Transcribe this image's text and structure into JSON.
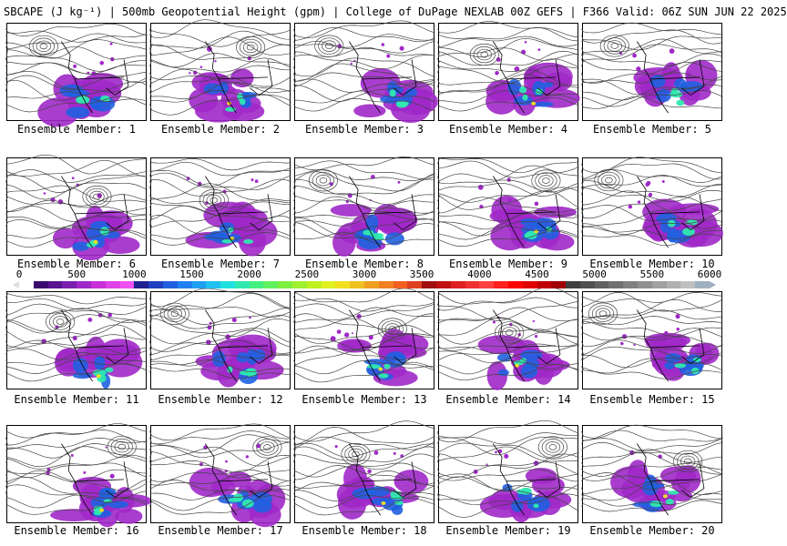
{
  "header": {
    "title": "SBCAPE (J kg⁻¹) | 500mb Geopotential Height (gpm) | College of DuPage NEXLAB 00Z GEFS | F366 Valid: 06Z SUN JUN 22 2025"
  },
  "members": [
    {
      "label": "Ensemble Member: 1"
    },
    {
      "label": "Ensemble Member: 2"
    },
    {
      "label": "Ensemble Member: 3"
    },
    {
      "label": "Ensemble Member: 4"
    },
    {
      "label": "Ensemble Member: 5"
    },
    {
      "label": "Ensemble Member: 6"
    },
    {
      "label": "Ensemble Member: 7"
    },
    {
      "label": "Ensemble Member: 8"
    },
    {
      "label": "Ensemble Member: 9"
    },
    {
      "label": "Ensemble Member: 10"
    },
    {
      "label": "Ensemble Member: 11"
    },
    {
      "label": "Ensemble Member: 12"
    },
    {
      "label": "Ensemble Member: 13"
    },
    {
      "label": "Ensemble Member: 14"
    },
    {
      "label": "Ensemble Member: 15"
    },
    {
      "label": "Ensemble Member: 16"
    },
    {
      "label": "Ensemble Member: 17"
    },
    {
      "label": "Ensemble Member: 18"
    },
    {
      "label": "Ensemble Member: 19"
    },
    {
      "label": "Ensemble Member: 20"
    }
  ],
  "colorbar": {
    "ticks": [
      "0",
      "500",
      "1000",
      "1500",
      "2000",
      "2500",
      "3000",
      "3500",
      "4000",
      "4500",
      "5000",
      "5500",
      "6000"
    ],
    "min": 0,
    "max": 6000,
    "colors": [
      "#ffffff",
      "#3a0a6e",
      "#5a1490",
      "#7a1eb0",
      "#a028c8",
      "#c830d8",
      "#e040e8",
      "#f050f0",
      "#202090",
      "#2040c0",
      "#2060e0",
      "#2080f0",
      "#20a0f0",
      "#20c0f0",
      "#20e0e0",
      "#30e8b0",
      "#40f080",
      "#60f060",
      "#80f040",
      "#a0f030",
      "#c0f020",
      "#e0f020",
      "#f0e020",
      "#f0c020",
      "#f0a020",
      "#f08020",
      "#f06020",
      "#e04020",
      "#a01010",
      "#c01010",
      "#e02020",
      "#f03030",
      "#ff4040",
      "#ff2020",
      "#ff0000",
      "#e00000",
      "#c00000",
      "#a00000",
      "#404040",
      "#505050",
      "#606060",
      "#707070",
      "#808080",
      "#909090",
      "#a0a0a0",
      "#b0b0b0",
      "#c0c0c0",
      "#a0b0c0"
    ]
  }
}
